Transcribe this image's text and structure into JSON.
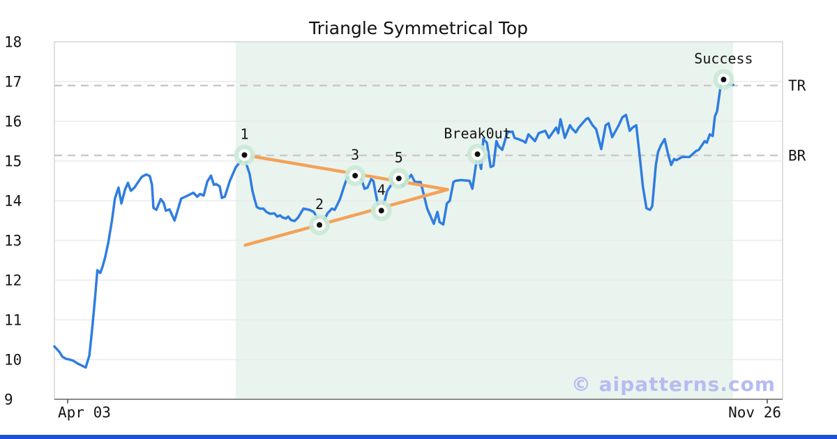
{
  "title": "Triangle Symmetrical Top",
  "watermark": "© aipatterns.com",
  "footer": {
    "bar_color": "#1d4ed8"
  },
  "chart_data": {
    "type": "line",
    "title": "Triangle Symmetrical Top",
    "x_axis": {
      "start_label": "Apr 03",
      "end_label": "Nov 26"
    },
    "y_axis": {
      "min": 9,
      "max": 18,
      "ticks": [
        9,
        10,
        11,
        12,
        13,
        14,
        15,
        16,
        17,
        18
      ]
    },
    "grid": "horizontal",
    "legend": "none",
    "colors": {
      "line": "#2f7de1",
      "trendline": "#f3a259",
      "window": "#eaf4ee",
      "halo": "#cbe9d6",
      "dashed": "#c9c9c9",
      "grid": "#e7e7e7",
      "border": "#d6d6d6",
      "axis": "#8a8a8a"
    },
    "pattern_window": {
      "t_start": 24.9,
      "t_end": 93.2
    },
    "levels": [
      {
        "label": "TR",
        "value": 16.9
      },
      {
        "label": "BR",
        "value": 15.14
      }
    ],
    "trendlines": [
      {
        "from": [
          26.1,
          15.15
        ],
        "to": [
          54.0,
          14.28
        ]
      },
      {
        "from": [
          26.2,
          12.88
        ],
        "to": [
          54.0,
          14.28
        ]
      }
    ],
    "markers": [
      {
        "label": "1",
        "t": 26.1,
        "v": 15.15
      },
      {
        "label": "2",
        "t": 36.4,
        "v": 13.39
      },
      {
        "label": "3",
        "t": 41.3,
        "v": 14.63
      },
      {
        "label": "4",
        "t": 44.9,
        "v": 13.75
      },
      {
        "label": "5",
        "t": 47.3,
        "v": 14.56
      },
      {
        "label": "Break0ut",
        "t": 58.1,
        "v": 15.17
      },
      {
        "label": "Success",
        "t": 91.9,
        "v": 17.05
      }
    ],
    "series": {
      "name": "price",
      "points": [
        [
          0,
          10.33
        ],
        [
          0.7,
          10.19
        ],
        [
          1.1,
          10.07
        ],
        [
          1.6,
          10.02
        ],
        [
          2.1,
          10.0
        ],
        [
          2.6,
          9.97
        ],
        [
          3.2,
          9.9
        ],
        [
          4.3,
          9.8
        ],
        [
          4.8,
          10.1
        ],
        [
          5.2,
          10.8
        ],
        [
          5.6,
          11.6
        ],
        [
          5.9,
          12.25
        ],
        [
          6.3,
          12.18
        ],
        [
          6.6,
          12.33
        ],
        [
          7,
          12.6
        ],
        [
          7.4,
          12.95
        ],
        [
          7.9,
          13.5
        ],
        [
          8.3,
          14.05
        ],
        [
          8.8,
          14.33
        ],
        [
          9.2,
          13.93
        ],
        [
          9.7,
          14.28
        ],
        [
          10.1,
          14.45
        ],
        [
          10.5,
          14.25
        ],
        [
          11,
          14.33
        ],
        [
          11.5,
          14.47
        ],
        [
          12,
          14.6
        ],
        [
          12.6,
          14.66
        ],
        [
          13.1,
          14.62
        ],
        [
          13.4,
          14.4
        ],
        [
          13.6,
          13.82
        ],
        [
          14,
          13.77
        ],
        [
          14.6,
          14.04
        ],
        [
          15,
          13.95
        ],
        [
          15.3,
          13.75
        ],
        [
          15.8,
          13.78
        ],
        [
          16.5,
          13.5
        ],
        [
          17.4,
          14.05
        ],
        [
          18.2,
          14.12
        ],
        [
          19.1,
          14.2
        ],
        [
          19.6,
          14.1
        ],
        [
          20,
          14.17
        ],
        [
          20.5,
          14.13
        ],
        [
          21,
          14.48
        ],
        [
          21.5,
          14.63
        ],
        [
          21.9,
          14.4
        ],
        [
          22.2,
          14.42
        ],
        [
          22.7,
          14.36
        ],
        [
          23,
          14.07
        ],
        [
          23.4,
          14.1
        ],
        [
          24.1,
          14.5
        ],
        [
          24.9,
          14.84
        ],
        [
          25.6,
          15.0
        ],
        [
          26.1,
          15.15
        ],
        [
          26.4,
          14.9
        ],
        [
          26.8,
          14.68
        ],
        [
          27.2,
          14.24
        ],
        [
          27.5,
          14.03
        ],
        [
          27.8,
          13.84
        ],
        [
          28.2,
          13.8
        ],
        [
          28.7,
          13.8
        ],
        [
          29.1,
          13.72
        ],
        [
          29.6,
          13.67
        ],
        [
          30.2,
          13.68
        ],
        [
          30.6,
          13.6
        ],
        [
          31,
          13.63
        ],
        [
          31.3,
          13.58
        ],
        [
          31.8,
          13.55
        ],
        [
          32.1,
          13.6
        ],
        [
          32.5,
          13.51
        ],
        [
          33,
          13.49
        ],
        [
          33.5,
          13.58
        ],
        [
          34.2,
          13.8
        ],
        [
          35,
          13.77
        ],
        [
          35.6,
          13.72
        ],
        [
          36,
          13.6
        ],
        [
          36.4,
          13.39
        ],
        [
          36.9,
          13.46
        ],
        [
          37.5,
          13.68
        ],
        [
          38.1,
          13.8
        ],
        [
          38.5,
          13.77
        ],
        [
          39.2,
          14.03
        ],
        [
          39.5,
          14.2
        ],
        [
          39.8,
          14.37
        ],
        [
          40.2,
          14.58
        ],
        [
          40.6,
          14.6
        ],
        [
          41.3,
          14.63
        ],
        [
          41.7,
          14.56
        ],
        [
          42.1,
          14.58
        ],
        [
          42.6,
          14.3
        ],
        [
          43,
          14.33
        ],
        [
          43.5,
          14.54
        ],
        [
          43.8,
          14.5
        ],
        [
          44.1,
          14.2
        ],
        [
          44.4,
          13.93
        ],
        [
          44.9,
          13.75
        ],
        [
          45.4,
          14.03
        ],
        [
          45.7,
          14.24
        ],
        [
          46.2,
          14.38
        ],
        [
          46.6,
          14.5
        ],
        [
          46.9,
          14.53
        ],
        [
          47.3,
          14.56
        ],
        [
          47.8,
          14.36
        ],
        [
          49,
          14.65
        ],
        [
          49.5,
          14.47
        ],
        [
          50.3,
          14.47
        ],
        [
          51.2,
          13.8
        ],
        [
          52.1,
          13.42
        ],
        [
          52.6,
          13.72
        ],
        [
          52.9,
          13.46
        ],
        [
          53.4,
          13.4
        ],
        [
          53.9,
          13.93
        ],
        [
          54.3,
          14.0
        ],
        [
          54.8,
          14.47
        ],
        [
          55.1,
          14.5
        ],
        [
          55.8,
          14.52
        ],
        [
          57,
          14.5
        ],
        [
          57.4,
          14.3
        ],
        [
          58.1,
          15.17
        ],
        [
          58.6,
          14.8
        ],
        [
          58.9,
          15.55
        ],
        [
          59.4,
          15.46
        ],
        [
          59.9,
          14.85
        ],
        [
          60.3,
          14.88
        ],
        [
          60.7,
          15.5
        ],
        [
          61,
          15.37
        ],
        [
          61.5,
          15.28
        ],
        [
          62.2,
          15.72
        ],
        [
          62.9,
          15.74
        ],
        [
          63.2,
          15.58
        ],
        [
          63.7,
          15.55
        ],
        [
          64.4,
          15.5
        ],
        [
          64.7,
          15.46
        ],
        [
          65.1,
          15.67
        ],
        [
          66,
          15.5
        ],
        [
          66.5,
          15.7
        ],
        [
          67.4,
          15.76
        ],
        [
          67.9,
          15.58
        ],
        [
          68.9,
          15.84
        ],
        [
          69.2,
          15.7
        ],
        [
          69.5,
          16.05
        ],
        [
          70.1,
          15.58
        ],
        [
          70.8,
          15.9
        ],
        [
          71.1,
          15.81
        ],
        [
          71.6,
          15.72
        ],
        [
          72,
          15.84
        ],
        [
          73,
          16.05
        ],
        [
          73.3,
          16.08
        ],
        [
          73.9,
          15.9
        ],
        [
          74.4,
          15.8
        ],
        [
          75.1,
          15.3
        ],
        [
          75.7,
          15.9
        ],
        [
          76.1,
          15.95
        ],
        [
          76.6,
          15.6
        ],
        [
          77.5,
          15.9
        ],
        [
          78,
          16.1
        ],
        [
          78.5,
          16.16
        ],
        [
          79,
          15.76
        ],
        [
          79.4,
          15.84
        ],
        [
          79.9,
          15.9
        ],
        [
          80.4,
          15.08
        ],
        [
          80.8,
          14.37
        ],
        [
          81.3,
          13.81
        ],
        [
          81.8,
          13.77
        ],
        [
          82.1,
          13.86
        ],
        [
          82.6,
          14.9
        ],
        [
          82.9,
          15.23
        ],
        [
          83.3,
          15.4
        ],
        [
          83.8,
          15.55
        ],
        [
          84.3,
          15.15
        ],
        [
          84.7,
          14.9
        ],
        [
          85.1,
          15.05
        ],
        [
          85.4,
          15.02
        ],
        [
          86.2,
          15.1
        ],
        [
          87.2,
          15.1
        ],
        [
          88.1,
          15.25
        ],
        [
          88.5,
          15.28
        ],
        [
          89.3,
          15.5
        ],
        [
          89.6,
          15.46
        ],
        [
          90,
          15.67
        ],
        [
          90.4,
          15.63
        ],
        [
          90.7,
          16.12
        ],
        [
          91,
          16.25
        ],
        [
          91.5,
          16.9
        ],
        [
          91.9,
          17.05
        ],
        [
          92.2,
          16.92
        ],
        [
          93.2,
          16.92
        ]
      ]
    }
  }
}
